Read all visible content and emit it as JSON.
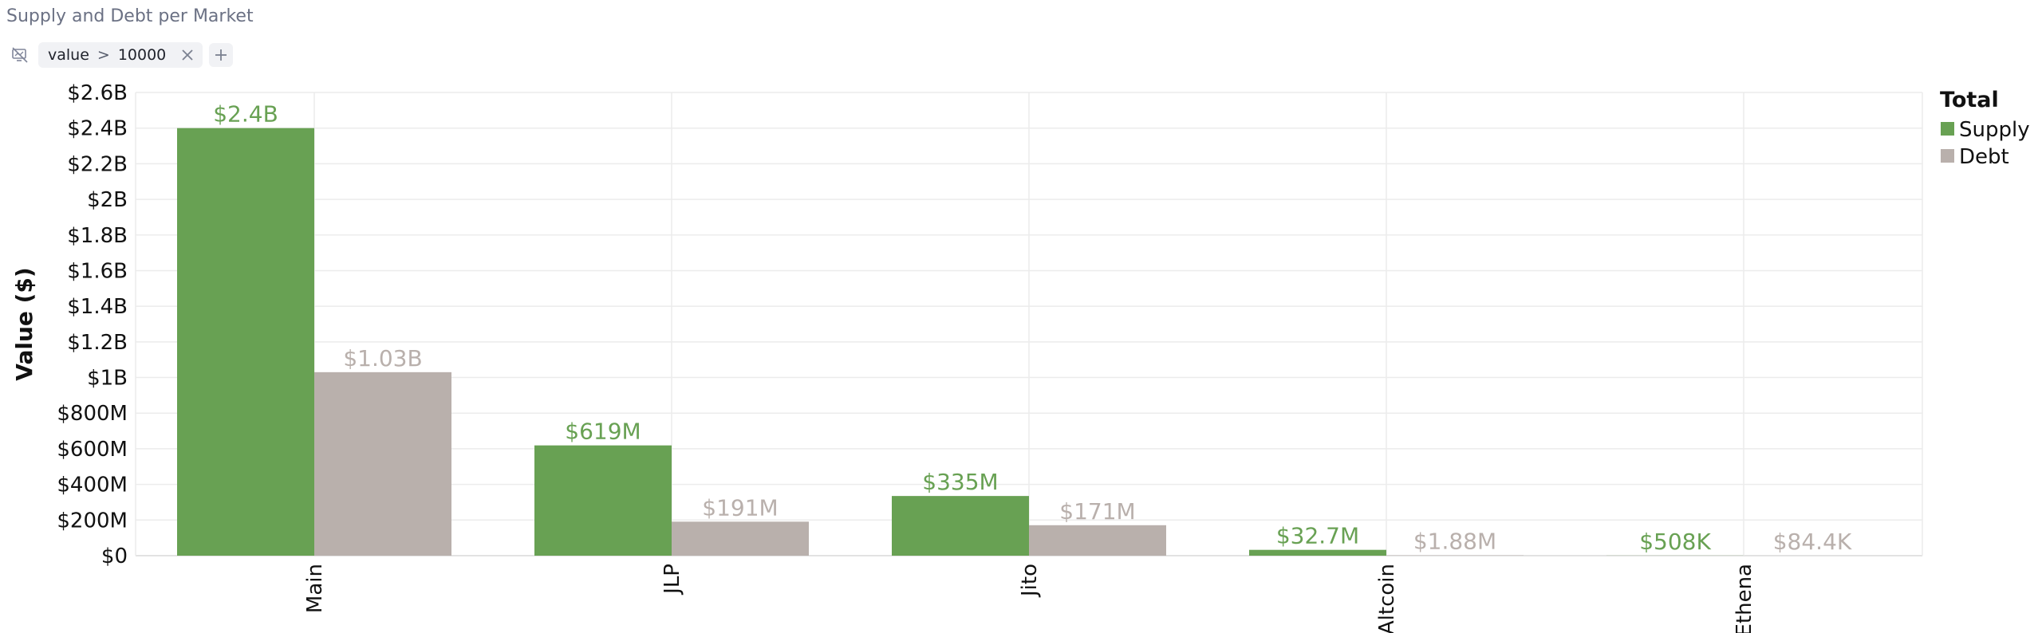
{
  "header": {
    "title": "Supply and Debt per Market"
  },
  "filters": {
    "toggle_icon": "filter-off-icon",
    "items": [
      {
        "field": "value",
        "operator": ">",
        "value": "10000"
      }
    ],
    "close_icon": "close-icon",
    "add_icon": "plus-icon"
  },
  "chart_data": {
    "type": "bar",
    "title": "",
    "xlabel": "",
    "ylabel": "Value ($)",
    "categories": [
      "Main",
      "JLP",
      "Jito",
      "Altcoin",
      "Ethena"
    ],
    "series": [
      {
        "name": "Supply",
        "color": "#68a153",
        "values": [
          2400000000,
          619000000,
          335000000,
          32700000,
          508000
        ],
        "labels": [
          "$2.4B",
          "$619M",
          "$335M",
          "$32.7M",
          "$508K"
        ]
      },
      {
        "name": "Debt",
        "color": "#b9b0ac",
        "values": [
          1030000000,
          191000000,
          171000000,
          1880000,
          84400
        ],
        "labels": [
          "$1.03B",
          "$191M",
          "$171M",
          "$1.88M",
          "$84.4K"
        ]
      }
    ],
    "ylim": [
      0,
      2600000000
    ],
    "yticks": [
      0,
      200000000,
      400000000,
      600000000,
      800000000,
      1000000000,
      1200000000,
      1400000000,
      1600000000,
      1800000000,
      2000000000,
      2200000000,
      2400000000,
      2600000000
    ],
    "ytick_labels": [
      "$0",
      "$200M",
      "$400M",
      "$600M",
      "$800M",
      "$1B",
      "$1.2B",
      "$1.4B",
      "$1.6B",
      "$1.8B",
      "$2B",
      "$2.2B",
      "$2.4B",
      "$2.6B"
    ],
    "legend": {
      "title": "Total",
      "position": "top-right"
    },
    "grid": true
  }
}
